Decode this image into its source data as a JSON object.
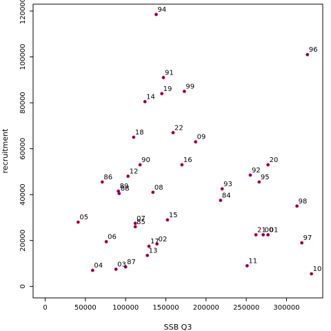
{
  "chart_data": {
    "type": "scatter",
    "xlabel": "SSB Q3",
    "ylabel": "recruitment",
    "xlim": [
      -15000,
      345000
    ],
    "ylim": [
      -5000,
      123000
    ],
    "x_ticks": [
      0,
      50000,
      100000,
      150000,
      200000,
      250000,
      300000
    ],
    "y_ticks": [
      0,
      20000,
      40000,
      60000,
      80000,
      100000,
      120000
    ],
    "grid": false,
    "colors": {
      "point_fill": "#0000ff",
      "point_edge": "#ff0000",
      "axes": "#000000"
    },
    "points": [
      {
        "label": "94",
        "x": 138000,
        "y": 118500
      },
      {
        "label": "96",
        "x": 326000,
        "y": 101000
      },
      {
        "label": "91",
        "x": 147000,
        "y": 91000
      },
      {
        "label": "19",
        "x": 145000,
        "y": 84000
      },
      {
        "label": "99",
        "x": 173000,
        "y": 85000
      },
      {
        "label": "14",
        "x": 124000,
        "y": 80500
      },
      {
        "label": "22",
        "x": 159000,
        "y": 67000
      },
      {
        "label": "18",
        "x": 110000,
        "y": 65000
      },
      {
        "label": "09",
        "x": 187000,
        "y": 63000
      },
      {
        "label": "16",
        "x": 170000,
        "y": 53000
      },
      {
        "label": "20",
        "x": 277000,
        "y": 53000
      },
      {
        "label": "90",
        "x": 118000,
        "y": 53000
      },
      {
        "label": "92",
        "x": 255000,
        "y": 48500
      },
      {
        "label": "12",
        "x": 103000,
        "y": 48000
      },
      {
        "label": "86",
        "x": 71000,
        "y": 45500
      },
      {
        "label": "95",
        "x": 266000,
        "y": 45500
      },
      {
        "label": "93",
        "x": 220000,
        "y": 42500
      },
      {
        "label": "89",
        "x": 91000,
        "y": 41500
      },
      {
        "label": "88",
        "x": 92000,
        "y": 40500
      },
      {
        "label": "08",
        "x": 134000,
        "y": 41000
      },
      {
        "label": "84",
        "x": 218000,
        "y": 37500
      },
      {
        "label": "98",
        "x": 313000,
        "y": 35000
      },
      {
        "label": "05",
        "x": 41000,
        "y": 28000
      },
      {
        "label": "15",
        "x": 152000,
        "y": 29000
      },
      {
        "label": "07",
        "x": 112000,
        "y": 27500
      },
      {
        "label": "85",
        "x": 112000,
        "y": 26000
      },
      {
        "label": "21",
        "x": 262000,
        "y": 22500
      },
      {
        "label": "00",
        "x": 271000,
        "y": 22500
      },
      {
        "label": "01",
        "x": 277000,
        "y": 22500
      },
      {
        "label": "06",
        "x": 76000,
        "y": 19500
      },
      {
        "label": "02",
        "x": 139000,
        "y": 18500
      },
      {
        "label": "97",
        "x": 319000,
        "y": 19000
      },
      {
        "label": "17",
        "x": 129000,
        "y": 17500
      },
      {
        "label": "13",
        "x": 127000,
        "y": 13500
      },
      {
        "label": "87",
        "x": 100000,
        "y": 8500
      },
      {
        "label": "11",
        "x": 251000,
        "y": 9000
      },
      {
        "label": "03",
        "x": 88000,
        "y": 7500
      },
      {
        "label": "04",
        "x": 59000,
        "y": 7000
      },
      {
        "label": "10",
        "x": 331000,
        "y": 5500
      }
    ]
  }
}
